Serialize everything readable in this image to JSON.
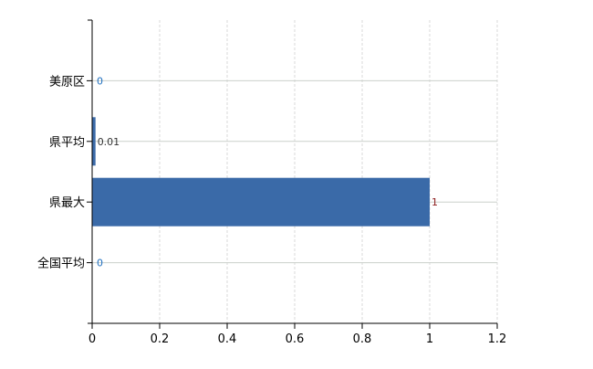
{
  "chart_data": {
    "type": "bar",
    "orientation": "horizontal",
    "categories": [
      "美原区",
      "県平均",
      "県最大",
      "全国平均"
    ],
    "values": [
      0,
      0.01,
      1,
      0
    ],
    "data_labels": [
      "0",
      "0.01",
      "1",
      "0"
    ],
    "xlim": [
      0,
      1.2
    ],
    "xticks": [
      "0",
      "0.2",
      "0.4",
      "0.6",
      "0.8",
      "1",
      "1.2"
    ],
    "grid": true,
    "bar_color": "#3a6aa8",
    "label_colors": [
      "#1f6fbf",
      "#333333",
      "#8b1a1a",
      "#1f6fbf"
    ]
  }
}
